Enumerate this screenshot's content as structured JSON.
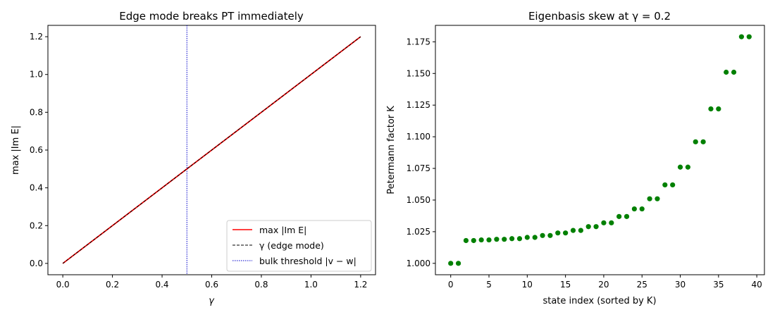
{
  "chart_data": [
    {
      "type": "line",
      "title": "Edge mode breaks PT immediately",
      "xlabel": "γ",
      "ylabel": "max |Im E|",
      "xlim": [
        -0.06,
        1.26
      ],
      "ylim": [
        -0.06,
        1.26
      ],
      "xticks": [
        "0.0",
        "0.2",
        "0.4",
        "0.6",
        "0.8",
        "1.0",
        "1.2"
      ],
      "yticks": [
        "0.0",
        "0.2",
        "0.4",
        "0.6",
        "0.8",
        "1.0",
        "1.2"
      ],
      "xtick_values": [
        0,
        0.2,
        0.4,
        0.6,
        0.8,
        1.0,
        1.2
      ],
      "ytick_values": [
        0,
        0.2,
        0.4,
        0.6,
        0.8,
        1.0,
        1.2
      ],
      "grid": false,
      "legend_position": "bottom-right",
      "series": [
        {
          "name": "max |Im E|",
          "color": "#ff0000",
          "style": "solid",
          "x": [
            0,
            1.2
          ],
          "y": [
            0,
            1.2
          ]
        },
        {
          "name": "γ (edge mode)",
          "color": "#000000",
          "style": "dashed",
          "x": [
            0,
            1.2
          ],
          "y": [
            0,
            1.2
          ]
        }
      ],
      "vlines": [
        {
          "name": "bulk threshold |v − w|",
          "color": "#0000cc",
          "style": "dotted",
          "x": 0.5
        }
      ]
    },
    {
      "type": "scatter",
      "title": "Eigenbasis skew at γ = 0.2",
      "xlabel": "state index (sorted by K)",
      "ylabel": "Petermann factor K",
      "xlim": [
        -2,
        41
      ],
      "ylim": [
        0.991,
        1.188
      ],
      "xticks": [
        "0",
        "5",
        "10",
        "15",
        "20",
        "25",
        "30",
        "35",
        "40"
      ],
      "yticks": [
        "1.000",
        "1.025",
        "1.050",
        "1.075",
        "1.100",
        "1.125",
        "1.150",
        "1.175"
      ],
      "xtick_values": [
        0,
        5,
        10,
        15,
        20,
        25,
        30,
        35,
        40
      ],
      "ytick_values": [
        1.0,
        1.025,
        1.05,
        1.075,
        1.1,
        1.125,
        1.15,
        1.175
      ],
      "grid": false,
      "color": "#008000",
      "x": [
        0,
        1,
        2,
        3,
        4,
        5,
        6,
        7,
        8,
        9,
        10,
        11,
        12,
        13,
        14,
        15,
        16,
        17,
        18,
        19,
        20,
        21,
        22,
        23,
        24,
        25,
        26,
        27,
        28,
        29,
        30,
        31,
        32,
        33,
        34,
        35,
        36,
        37,
        38,
        39
      ],
      "y": [
        1.0,
        1.0,
        1.018,
        1.018,
        1.0185,
        1.0185,
        1.019,
        1.019,
        1.0195,
        1.0195,
        1.0205,
        1.0205,
        1.022,
        1.022,
        1.024,
        1.024,
        1.026,
        1.026,
        1.029,
        1.029,
        1.032,
        1.032,
        1.037,
        1.037,
        1.043,
        1.043,
        1.051,
        1.051,
        1.062,
        1.062,
        1.076,
        1.076,
        1.096,
        1.096,
        1.122,
        1.122,
        1.151,
        1.151,
        1.179,
        1.179
      ]
    }
  ]
}
